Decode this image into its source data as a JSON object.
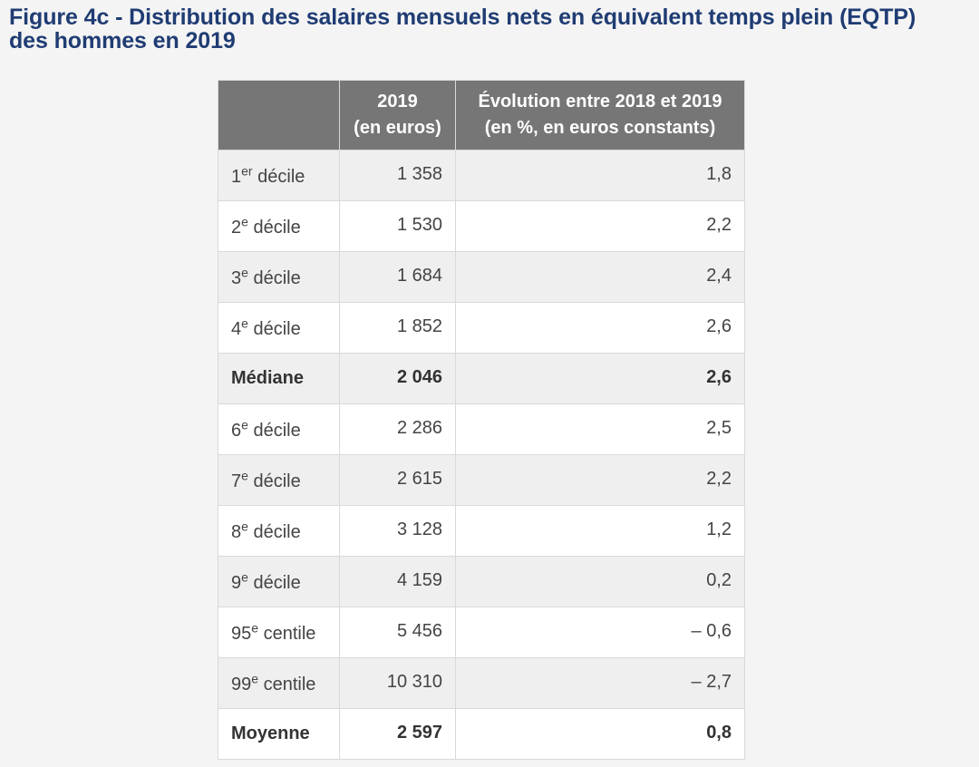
{
  "title": {
    "line1": "Figure 4c - Distribution des salaires mensuels nets en équivalent temps plein (EQTP)",
    "line2": "des hommes en 2019"
  },
  "table": {
    "headers": [
      {
        "line1": "",
        "line2": ""
      },
      {
        "line1": "2019",
        "line2": "(en euros)"
      },
      {
        "line1": "Évolution entre 2018 et 2019",
        "line2": "(en %, en euros constants)"
      }
    ],
    "rows": [
      {
        "prefix": "1",
        "sup": "er",
        "suffix": " décile",
        "value": "1 358",
        "evolution": "1,8",
        "bold": false
      },
      {
        "prefix": "2",
        "sup": "e",
        "suffix": " décile",
        "value": "1 530",
        "evolution": "2,2",
        "bold": false
      },
      {
        "prefix": "3",
        "sup": "e",
        "suffix": " décile",
        "value": "1 684",
        "evolution": "2,4",
        "bold": false
      },
      {
        "prefix": "4",
        "sup": "e",
        "suffix": " décile",
        "value": "1 852",
        "evolution": "2,6",
        "bold": false
      },
      {
        "prefix": "Médiane",
        "sup": "",
        "suffix": "",
        "value": "2 046",
        "evolution": "2,6",
        "bold": true
      },
      {
        "prefix": "6",
        "sup": "e",
        "suffix": " décile",
        "value": "2 286",
        "evolution": "2,5",
        "bold": false
      },
      {
        "prefix": "7",
        "sup": "e",
        "suffix": " décile",
        "value": "2 615",
        "evolution": "2,2",
        "bold": false
      },
      {
        "prefix": "8",
        "sup": "e",
        "suffix": " décile",
        "value": "3 128",
        "evolution": "1,2",
        "bold": false
      },
      {
        "prefix": "9",
        "sup": "e",
        "suffix": " décile",
        "value": "4 159",
        "evolution": "0,2",
        "bold": false
      },
      {
        "prefix": "95",
        "sup": "e",
        "suffix": " centile",
        "value": "5 456",
        "evolution": "– 0,6",
        "bold": false
      },
      {
        "prefix": "99",
        "sup": "e",
        "suffix": " centile",
        "value": "10 310",
        "evolution": "– 2,7",
        "bold": false
      },
      {
        "prefix": "Moyenne",
        "sup": "",
        "suffix": "",
        "value": "2 597",
        "evolution": "0,8",
        "bold": true
      }
    ]
  },
  "colors": {
    "title": "#1f3c73",
    "header_bg": "#767676",
    "row_odd": "#efefef",
    "row_even": "#ffffff",
    "page_bg": "#f4f4f4"
  }
}
